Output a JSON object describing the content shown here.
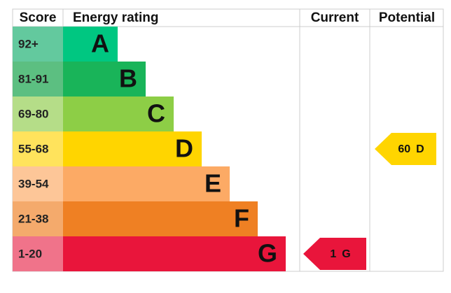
{
  "header": {
    "score": "Score",
    "rating": "Energy rating",
    "current": "Current",
    "potential": "Potential"
  },
  "bands": [
    {
      "score": "92+",
      "letter": "A",
      "color": "#00c781",
      "light": "#63c99e"
    },
    {
      "score": "81-91",
      "letter": "B",
      "color": "#19b459",
      "light": "#5cbf81"
    },
    {
      "score": "69-80",
      "letter": "C",
      "color": "#8dce46",
      "light": "#b5dd88"
    },
    {
      "score": "55-68",
      "letter": "D",
      "color": "#ffd500",
      "light": "#ffe35c"
    },
    {
      "score": "39-54",
      "letter": "E",
      "color": "#fcaa65",
      "light": "#fdc698"
    },
    {
      "score": "21-38",
      "letter": "F",
      "color": "#ef8023",
      "light": "#f4aa6c"
    },
    {
      "score": "1-20",
      "letter": "G",
      "color": "#e9153b",
      "light": "#f0738a"
    }
  ],
  "current": {
    "score": "1",
    "letter": "G"
  },
  "potential": {
    "score": "60",
    "letter": "D"
  }
}
